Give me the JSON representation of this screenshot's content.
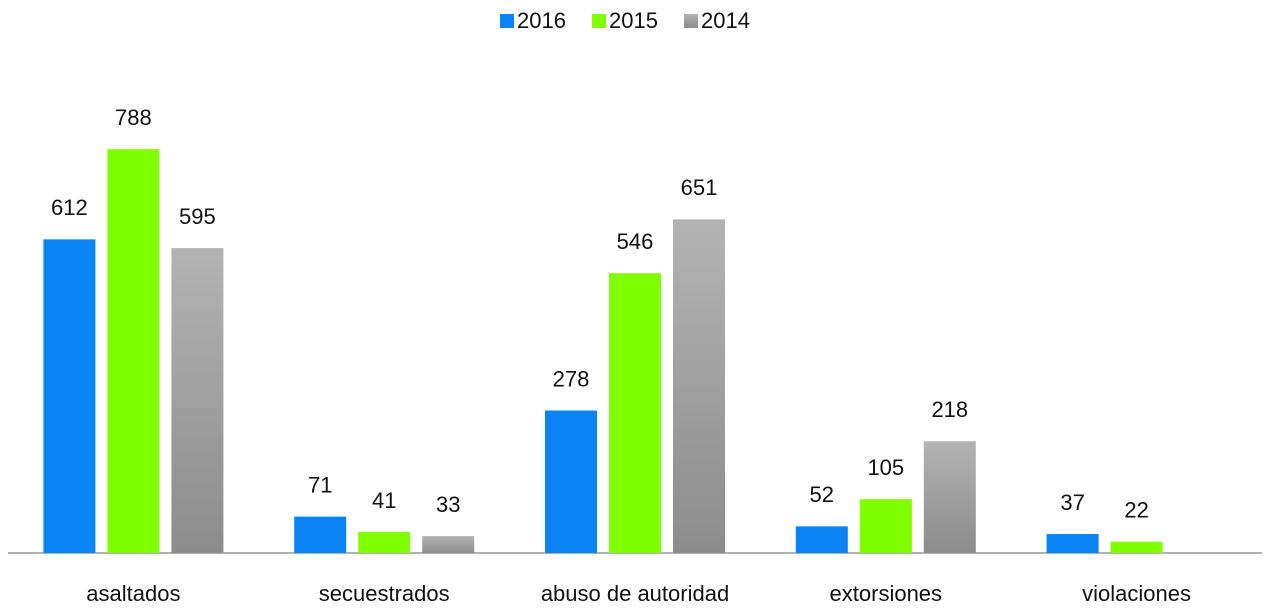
{
  "chart_data": {
    "type": "bar",
    "categories": [
      "asaltados",
      "secuestrados",
      "abuso de autoridad",
      "extorsiones",
      "violaciones"
    ],
    "series": [
      {
        "name": "2016",
        "color": "#0a84f5",
        "values": [
          612,
          71,
          278,
          52,
          37
        ]
      },
      {
        "name": "2015",
        "color": "#80ff00",
        "values": [
          788,
          41,
          546,
          105,
          22
        ]
      },
      {
        "name": "2014",
        "color": "#a6a6a6",
        "values": [
          595,
          33,
          651,
          218,
          null
        ]
      }
    ],
    "ylim": [
      0,
      800
    ],
    "legend": "top"
  }
}
